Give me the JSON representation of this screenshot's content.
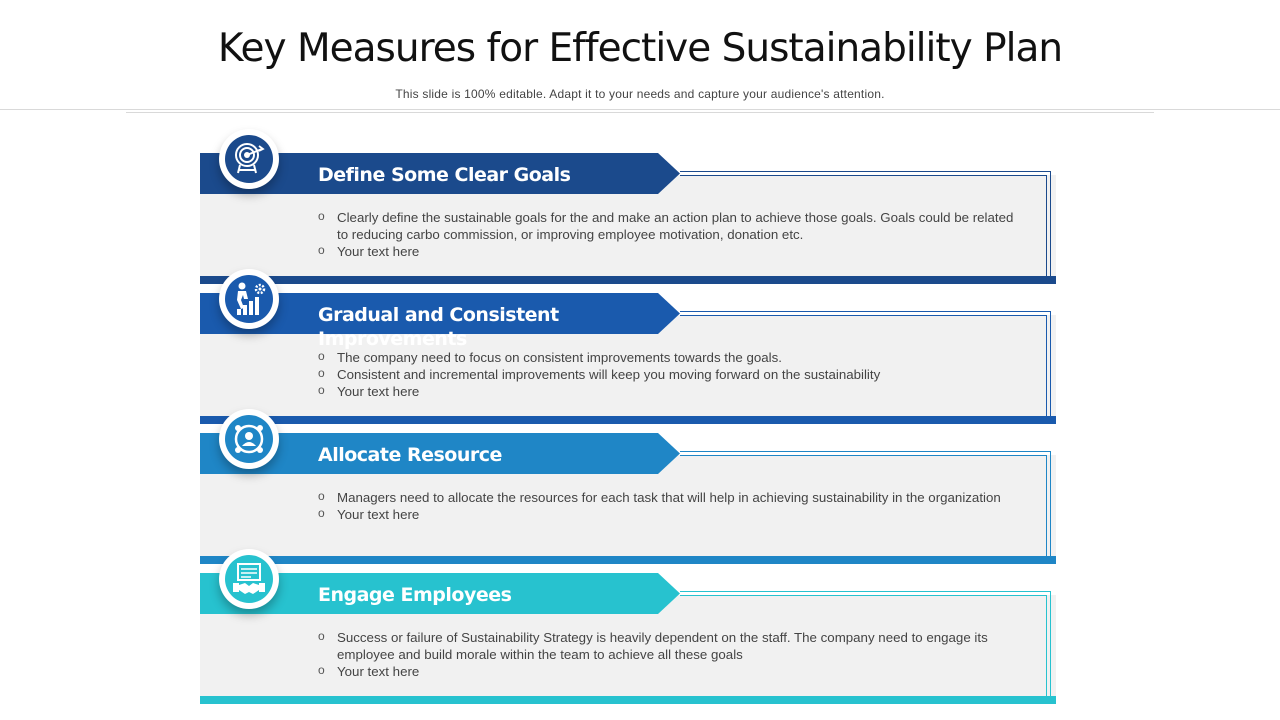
{
  "slide": {
    "title": "Key Measures for Effective Sustainability Plan",
    "subtitle": "This slide is 100% editable. Adapt it to your needs and capture your audience's attention."
  },
  "sections": [
    {
      "title": "Define Some Clear Goals",
      "icon": "target-icon",
      "color": "#1b4a8c",
      "bullets": [
        "Clearly define the sustainable goals for the and make an action plan to achieve those goals. Goals could be related to reducing carbo commission, or improving employee motivation, donation etc.",
        "Your text here"
      ]
    },
    {
      "title": "Gradual and Consistent Improvements",
      "icon": "growth-icon",
      "color": "#1a5aad",
      "bullets": [
        "The company need to focus on consistent improvements towards the goals.",
        "Consistent and incremental improvements will keep you moving forward on the sustainability",
        "Your text here"
      ]
    },
    {
      "title": "Allocate Resource",
      "icon": "resource-icon",
      "color": "#1f86c6",
      "bullets": [
        "Managers need to allocate the resources for each task that will help in achieving sustainability in the organization",
        "Your text here"
      ]
    },
    {
      "title": "Engage Employees",
      "icon": "handshake-icon",
      "color": "#27c2cf",
      "bullets": [
        "Success or failure of Sustainability Strategy is heavily dependent on the staff. The company need to engage its employee and build morale within the team to achieve all these goals",
        "Your text here"
      ]
    }
  ]
}
